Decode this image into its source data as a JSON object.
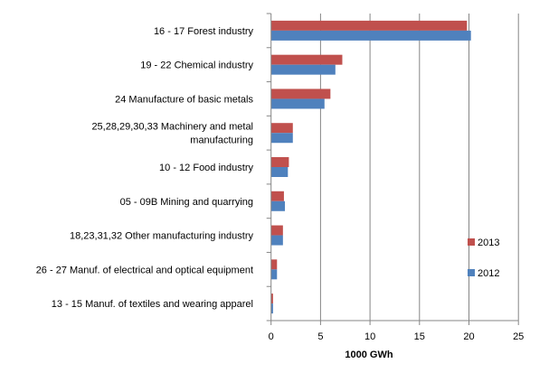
{
  "chart_data": {
    "type": "bar",
    "orientation": "horizontal",
    "categories": [
      "16 - 17 Forest industry",
      "19 - 22 Chemical industry",
      "24 Manufacture of basic metals",
      "25,28,29,30,33 Machinery and metal manufacturing",
      "10 - 12 Food industry",
      "05 - 09B Mining and quarrying",
      "18,23,31,32 Other manufacturing industry",
      "26 - 27 Manuf. of electrical and  optical equipment",
      "13 - 15 Manuf. of textiles and  wearing apparel"
    ],
    "category_lines": [
      [
        "16 - 17 Forest industry"
      ],
      [
        "19 - 22 Chemical industry"
      ],
      [
        "24 Manufacture of basic metals"
      ],
      [
        "25,28,29,30,33 Machinery and metal",
        "manufacturing"
      ],
      [
        "10 - 12 Food industry"
      ],
      [
        "05 - 09B Mining and quarrying"
      ],
      [
        "18,23,31,32 Other manufacturing industry"
      ],
      [
        "26 - 27 Manuf. of electrical and  optical equipment"
      ],
      [
        "13 - 15 Manuf. of textiles and  wearing apparel"
      ]
    ],
    "series": [
      {
        "name": "2013",
        "color": "#c0504d",
        "values": [
          19.8,
          7.2,
          6.0,
          2.2,
          1.8,
          1.3,
          1.2,
          0.6,
          0.2
        ]
      },
      {
        "name": "2012",
        "color": "#4f81bd",
        "values": [
          20.2,
          6.5,
          5.4,
          2.2,
          1.7,
          1.4,
          1.2,
          0.6,
          0.2
        ]
      }
    ],
    "xlabel": "1000 GWh",
    "ylabel": "",
    "title": "",
    "xlim": [
      0,
      25
    ],
    "xticks": [
      0,
      5,
      10,
      15,
      20,
      25
    ],
    "grid": "vertical",
    "legend_placement": "right"
  }
}
